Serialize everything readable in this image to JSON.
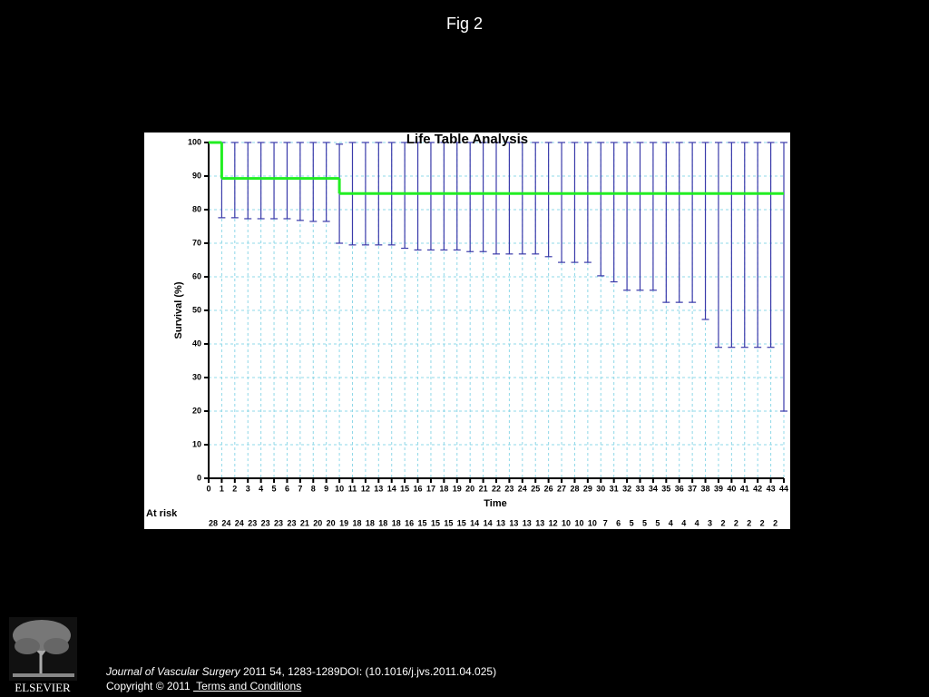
{
  "header": {
    "title": "Fig 2"
  },
  "chart_data": {
    "type": "line",
    "title": "Life Table Analysis",
    "x_label": "Time",
    "y_label": "Survival (%)",
    "x": [
      0,
      1,
      2,
      3,
      4,
      5,
      6,
      7,
      8,
      9,
      10,
      11,
      12,
      13,
      14,
      15,
      16,
      17,
      18,
      19,
      20,
      21,
      22,
      23,
      24,
      25,
      26,
      27,
      28,
      29,
      30,
      31,
      32,
      33,
      34,
      35,
      36,
      37,
      38,
      39,
      40,
      41,
      42,
      43,
      44
    ],
    "step": true,
    "series": [
      {
        "color": "#22ee22",
        "values": [
          100,
          89.3,
          89.3,
          89.3,
          89.3,
          89.3,
          89.3,
          89.3,
          89.3,
          89.3,
          84.8,
          84.8,
          84.8,
          84.8,
          84.8,
          84.8,
          84.8,
          84.8,
          84.8,
          84.8,
          84.8,
          84.8,
          84.8,
          84.8,
          84.8,
          84.8,
          84.8,
          84.8,
          84.8,
          84.8,
          84.8,
          84.8,
          84.8,
          84.8,
          84.8,
          84.8,
          84.8,
          84.8,
          84.8,
          84.8,
          84.8,
          84.8,
          84.8,
          84.8,
          84.8
        ],
        "ci_upper": [
          null,
          100,
          100,
          100,
          100,
          100,
          100,
          100,
          100,
          100,
          99.5,
          100,
          100,
          100,
          100,
          100,
          100,
          100,
          100,
          100,
          100,
          100,
          100,
          100,
          100,
          100,
          100,
          100,
          100,
          100,
          100,
          100,
          100,
          100,
          100,
          100,
          100,
          100,
          100,
          100,
          100,
          100,
          100,
          100,
          100
        ],
        "ci_lower": [
          null,
          77.6,
          77.6,
          77.3,
          77.3,
          77.3,
          77.3,
          76.8,
          76.5,
          76.5,
          70,
          69.5,
          69.5,
          69.5,
          69.5,
          68.5,
          68,
          68,
          68,
          68,
          67.5,
          67.5,
          66.8,
          66.8,
          66.8,
          66.8,
          66,
          64.3,
          64.3,
          64.3,
          60.3,
          58.5,
          56,
          56,
          56,
          52.4,
          52.4,
          52.4,
          47.3,
          39,
          39,
          39,
          39,
          39,
          20
        ],
        "ci_color": "#3a3aaa"
      }
    ],
    "xlim": [
      0,
      44
    ],
    "ylim": [
      0,
      100
    ],
    "xticks": [
      0,
      1,
      2,
      3,
      4,
      5,
      6,
      7,
      8,
      9,
      10,
      11,
      12,
      13,
      14,
      15,
      16,
      17,
      18,
      19,
      20,
      21,
      22,
      23,
      24,
      25,
      26,
      27,
      28,
      29,
      30,
      31,
      32,
      33,
      34,
      35,
      36,
      37,
      38,
      39,
      40,
      41,
      42,
      43,
      44
    ],
    "yticks": [
      0,
      10,
      20,
      30,
      40,
      50,
      60,
      70,
      80,
      90,
      100
    ],
    "grid": true,
    "grid_color": "#8fd8e8",
    "at_risk": {
      "label": "At risk",
      "values": [
        28,
        24,
        24,
        23,
        23,
        23,
        23,
        21,
        20,
        20,
        19,
        18,
        18,
        18,
        18,
        16,
        15,
        15,
        15,
        15,
        14,
        14,
        13,
        13,
        13,
        13,
        12,
        10,
        10,
        10,
        7,
        6,
        5,
        5,
        5,
        4,
        4,
        4,
        3,
        2,
        2,
        2,
        2,
        2
      ]
    }
  },
  "footer": {
    "journal": "Journal of Vascular Surgery",
    "citation": " 2011 54, 1283-1289DOI: (10.1016/j.jvs.2011.04.025)",
    "copyright": "Copyright © 2011 ",
    "link": " Terms and Conditions",
    "logo_text": "ELSEVIER"
  }
}
